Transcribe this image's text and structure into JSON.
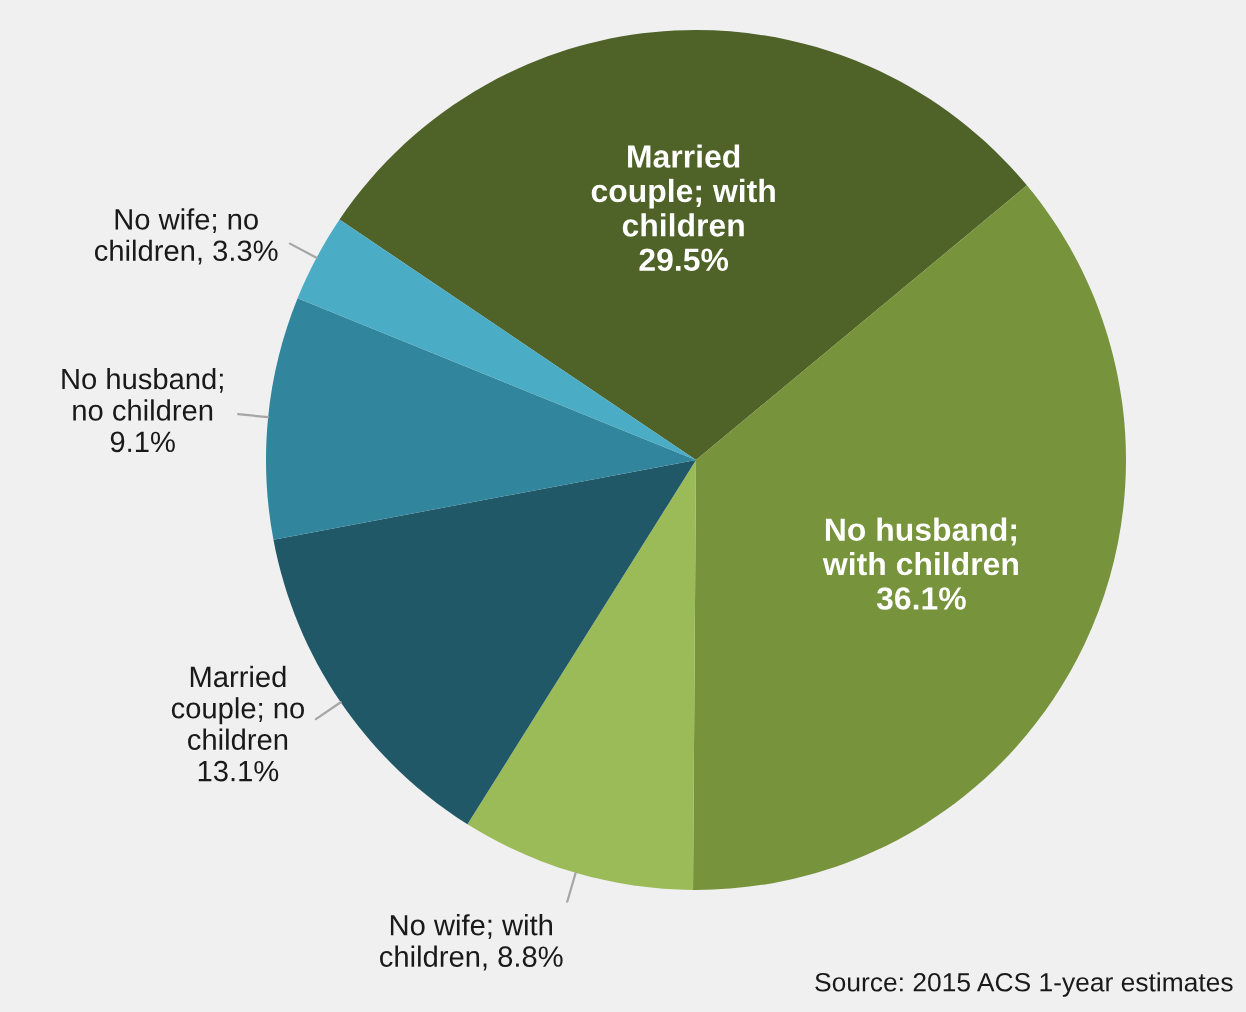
{
  "chart_data": {
    "type": "pie",
    "categories": [
      "Married\ncouple; with\nchildren",
      "No husband;\nwith children",
      "No wife; with\nchildren",
      "Married\ncouple; no\nchildren",
      "No husband;\nno children",
      "No wife; no\nchildren"
    ],
    "values": [
      29.5,
      36.1,
      8.8,
      13.1,
      9.1,
      3.3
    ],
    "value_labels": [
      "29.5%",
      "36.1%",
      "8.8%",
      "13.1%",
      "9.1%",
      "3.3%"
    ],
    "colors": [
      "#4f6228",
      "#77933c",
      "#9bbb59",
      "#215868",
      "#31859c",
      "#4bacc6"
    ],
    "annotations": [
      "Source: 2015 ACS 1-year estimates"
    ]
  }
}
